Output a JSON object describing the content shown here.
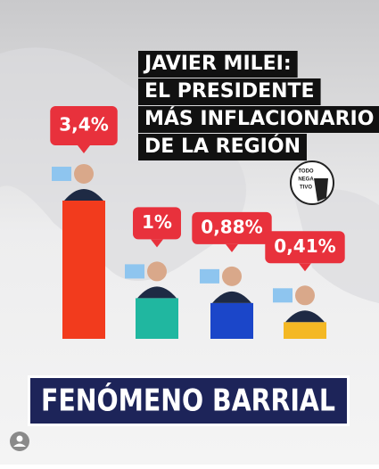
{
  "chart_data": {
    "type": "bar",
    "title": [
      "JAVIER MILEI:",
      "EL PRESIDENTE",
      "MÁS INFLACIONARIO",
      "DE LA REGIÓN"
    ],
    "values": [
      3.4,
      1,
      0.88,
      0.41
    ],
    "value_labels": [
      "3,4%",
      "1%",
      "0,88%",
      "0,41%"
    ],
    "colors": [
      "#f23b1d",
      "#20b7a0",
      "#1b46c9",
      "#f4b824"
    ],
    "logo": [
      "TODO",
      "NEGA",
      "TIVO"
    ],
    "banner": "FENÓMENO BARRIAL"
  }
}
